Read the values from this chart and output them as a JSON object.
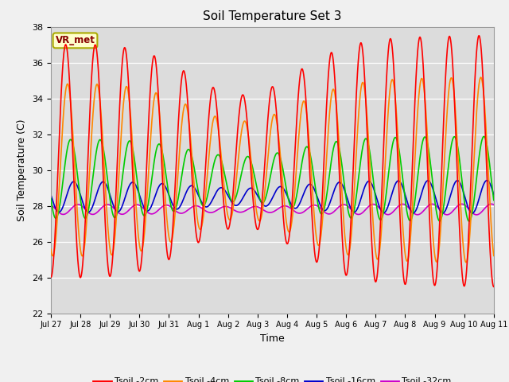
{
  "title": "Soil Temperature Set 3",
  "xlabel": "Time",
  "ylabel": "Soil Temperature (C)",
  "ylim": [
    22,
    38
  ],
  "yticks": [
    22,
    24,
    26,
    28,
    30,
    32,
    34,
    36,
    38
  ],
  "bg_color": "#dcdcdc",
  "fig_color": "#f0f0f0",
  "annotation_text": "VR_met",
  "annotation_bg": "#ffffcc",
  "annotation_border": "#aaaa00",
  "legend_entries": [
    "Tsoil -2cm",
    "Tsoil -4cm",
    "Tsoil -8cm",
    "Tsoil -16cm",
    "Tsoil -32cm"
  ],
  "line_colors": [
    "#ff0000",
    "#ff8800",
    "#00cc00",
    "#0000cc",
    "#cc00cc"
  ],
  "date_ticks": [
    "Jul 27",
    "Jul 28",
    "Jul 29",
    "Jul 30",
    "Jul 31",
    "Aug 1",
    "Aug 2",
    "Aug 3",
    "Aug 4",
    "Aug 5",
    "Aug 6",
    "Aug 7",
    "Aug 8",
    "Aug 9",
    "Aug 10",
    "Aug 11"
  ],
  "date_tick_positions": [
    0,
    1,
    2,
    3,
    4,
    5,
    6,
    7,
    8,
    9,
    10,
    11,
    12,
    13,
    14,
    15
  ]
}
